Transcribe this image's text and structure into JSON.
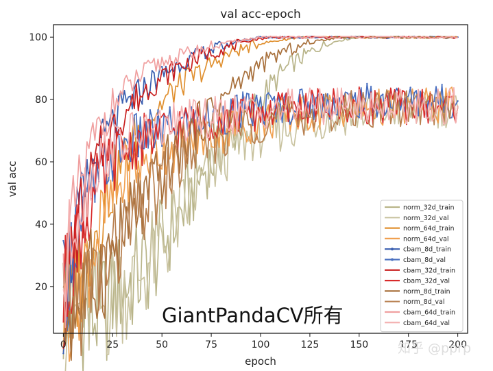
{
  "chart_data": {
    "type": "line",
    "title": "val acc-epoch",
    "xlabel": "epoch",
    "ylabel": "val acc",
    "xlim": [
      -5,
      205
    ],
    "ylim": [
      5,
      104
    ],
    "xticks": [
      0,
      25,
      50,
      75,
      100,
      125,
      150,
      175,
      200
    ],
    "yticks": [
      20,
      40,
      60,
      80,
      100
    ],
    "xtick_labels": [
      "0",
      "25",
      "50",
      "75",
      "100",
      "125",
      "150",
      "175",
      "200"
    ],
    "ytick_labels": [
      "20",
      "40",
      "60",
      "80",
      "100"
    ],
    "grid": false,
    "legend_position": "lower-right",
    "series": [
      {
        "name": "norm_32d_train",
        "color": "#b9b58a",
        "marker": false,
        "x": [
          0,
          5,
          10,
          15,
          20,
          25,
          30,
          35,
          40,
          45,
          50,
          55,
          60,
          65,
          70,
          75,
          80,
          85,
          90,
          95,
          100,
          105,
          110,
          115,
          120,
          125,
          130,
          135,
          140,
          145,
          150,
          155,
          160,
          165,
          170,
          175,
          180,
          190,
          200
        ],
        "y": [
          10,
          12,
          12,
          11,
          13,
          17,
          21,
          22,
          25,
          29,
          33,
          39,
          44,
          50,
          56,
          60,
          64,
          68,
          72,
          76,
          80,
          84,
          88,
          91,
          93,
          95,
          97,
          98,
          99,
          99.5,
          100,
          100,
          100,
          100,
          100,
          100,
          100,
          100,
          100
        ]
      },
      {
        "name": "norm_32d_val",
        "color": "#c9c3a0",
        "marker": false,
        "x": [
          0,
          5,
          10,
          15,
          20,
          25,
          30,
          35,
          40,
          45,
          50,
          55,
          60,
          65,
          70,
          75,
          80,
          85,
          90,
          95,
          100,
          105,
          110,
          115,
          120,
          125,
          130,
          135,
          140,
          145,
          150,
          160,
          170,
          180,
          190,
          200
        ],
        "y": [
          10,
          11,
          12,
          12,
          13,
          16,
          20,
          21,
          25,
          29,
          33,
          38,
          43,
          48,
          53,
          57,
          61,
          64,
          66,
          68,
          69,
          70,
          70.5,
          71,
          72,
          73,
          73.5,
          74,
          74.5,
          75,
          75.5,
          76,
          76.5,
          76.5,
          77,
          77
        ]
      },
      {
        "name": "norm_64d_train",
        "color": "#e09030",
        "marker": false,
        "x": [
          0,
          5,
          10,
          15,
          20,
          25,
          30,
          35,
          40,
          45,
          50,
          55,
          60,
          65,
          70,
          75,
          80,
          85,
          90,
          95,
          100,
          105,
          110,
          115,
          120,
          125,
          130,
          135,
          140,
          145,
          150,
          160,
          170,
          180,
          190,
          200
        ],
        "y": [
          11,
          18,
          26,
          36,
          45,
          53,
          60,
          66,
          71,
          75,
          79,
          82,
          85,
          87,
          89,
          91,
          93,
          95,
          96,
          97,
          98,
          98.5,
          99,
          99.5,
          100,
          100,
          100,
          100,
          100,
          100,
          100,
          100,
          100,
          100,
          100,
          100
        ]
      },
      {
        "name": "norm_64d_val",
        "color": "#f0a050",
        "marker": false,
        "x": [
          0,
          5,
          10,
          15,
          20,
          25,
          30,
          35,
          40,
          45,
          50,
          55,
          60,
          65,
          70,
          75,
          80,
          85,
          90,
          95,
          100,
          105,
          110,
          115,
          120,
          125,
          130,
          135,
          140,
          150,
          160,
          170,
          180,
          190,
          200
        ],
        "y": [
          11,
          17,
          24,
          33,
          41,
          48,
          53,
          57,
          60,
          62,
          64,
          65,
          66,
          67,
          68,
          69,
          70,
          71,
          72,
          72.5,
          73,
          73.5,
          74,
          74.5,
          75,
          75.5,
          76,
          76.5,
          77,
          77,
          77.5,
          77.5,
          78,
          78,
          78
        ]
      },
      {
        "name": "cbam_8d_train",
        "color": "#3a5fb0",
        "marker": true,
        "x": [
          0,
          5,
          10,
          15,
          20,
          25,
          30,
          35,
          40,
          45,
          50,
          55,
          60,
          65,
          70,
          75,
          80,
          85,
          90,
          95,
          100,
          105,
          110,
          115,
          120,
          125,
          130,
          135,
          140,
          150,
          160,
          170,
          180,
          190,
          200
        ],
        "y": [
          16,
          35,
          46,
          57,
          66,
          72,
          77,
          80,
          83,
          86,
          88,
          90,
          92,
          93,
          95,
          96,
          97,
          98,
          99,
          99.5,
          100,
          100,
          100,
          100,
          100,
          100,
          100,
          100,
          100,
          100,
          100,
          100,
          100,
          100,
          100
        ]
      },
      {
        "name": "cbam_8d_val",
        "color": "#4a70c0",
        "marker": true,
        "x": [
          0,
          5,
          10,
          15,
          20,
          25,
          30,
          35,
          40,
          45,
          50,
          55,
          60,
          65,
          70,
          75,
          80,
          85,
          90,
          95,
          100,
          105,
          110,
          115,
          120,
          125,
          130,
          135,
          140,
          150,
          160,
          170,
          180,
          190,
          200
        ],
        "y": [
          16,
          33,
          42,
          50,
          57,
          62,
          65,
          67,
          68,
          69,
          70,
          71,
          72,
          73,
          73.5,
          74,
          75,
          75.5,
          76,
          76.5,
          77,
          77.5,
          78,
          78,
          78.5,
          78.5,
          79,
          79,
          79,
          79.5,
          79.5,
          79.5,
          79.5,
          79.5,
          79.5
        ]
      },
      {
        "name": "cbam_32d_train",
        "color": "#c81e1e",
        "marker": false,
        "x": [
          0,
          5,
          10,
          15,
          20,
          25,
          30,
          35,
          40,
          45,
          50,
          55,
          60,
          65,
          70,
          75,
          80,
          85,
          90,
          95,
          100,
          105,
          110,
          115,
          120,
          125,
          130,
          135,
          140,
          150,
          160,
          170,
          180,
          190,
          200
        ],
        "y": [
          15,
          33,
          45,
          56,
          64,
          70,
          75,
          79,
          82,
          85,
          87,
          89,
          91,
          92,
          94,
          95,
          96,
          97,
          98,
          99,
          99.5,
          100,
          100,
          100,
          100,
          100,
          100,
          100,
          100,
          100,
          100,
          100,
          100,
          100,
          100
        ]
      },
      {
        "name": "cbam_32d_val",
        "color": "#d82a2a",
        "marker": false,
        "x": [
          0,
          5,
          10,
          15,
          20,
          25,
          30,
          35,
          40,
          45,
          50,
          55,
          60,
          65,
          70,
          75,
          80,
          85,
          90,
          95,
          100,
          105,
          110,
          115,
          120,
          125,
          130,
          135,
          140,
          150,
          160,
          170,
          180,
          190,
          200
        ],
        "y": [
          15,
          31,
          40,
          48,
          55,
          60,
          63,
          65,
          67,
          68,
          69,
          70,
          71,
          72,
          73,
          73.5,
          74,
          74.5,
          75,
          75.5,
          76,
          76.5,
          77,
          77,
          77.5,
          77.5,
          78,
          78,
          78,
          78,
          78,
          78,
          78,
          78,
          78
        ]
      },
      {
        "name": "norm_8d_train",
        "color": "#a8703c",
        "marker": false,
        "x": [
          0,
          5,
          10,
          15,
          20,
          25,
          30,
          35,
          40,
          45,
          50,
          55,
          60,
          65,
          70,
          75,
          80,
          85,
          90,
          95,
          100,
          105,
          110,
          115,
          120,
          125,
          130,
          135,
          140,
          150,
          160,
          170,
          180,
          190,
          200
        ],
        "y": [
          10,
          13,
          17,
          21,
          26,
          31,
          36,
          41,
          46,
          51,
          56,
          61,
          65,
          69,
          73,
          77,
          80,
          83,
          86,
          89,
          91,
          93,
          95,
          96,
          97,
          98,
          99,
          99.5,
          100,
          100,
          100,
          100,
          100,
          100,
          100
        ]
      },
      {
        "name": "norm_8d_val",
        "color": "#b88050",
        "marker": false,
        "x": [
          0,
          5,
          10,
          15,
          20,
          25,
          30,
          35,
          40,
          45,
          50,
          55,
          60,
          65,
          70,
          75,
          80,
          85,
          90,
          95,
          100,
          105,
          110,
          115,
          120,
          125,
          130,
          135,
          140,
          150,
          160,
          170,
          180,
          190,
          200
        ],
        "y": [
          10,
          13,
          17,
          21,
          25,
          30,
          35,
          40,
          45,
          49,
          53,
          57,
          60,
          63,
          65,
          67,
          68.5,
          70,
          71,
          72,
          73,
          73.5,
          74,
          74.5,
          75,
          75.5,
          76,
          76,
          76.5,
          77,
          77,
          77.5,
          77.5,
          77.5,
          77.5
        ]
      },
      {
        "name": "cbam_64d_train",
        "color": "#f0a0a0",
        "marker": false,
        "x": [
          0,
          5,
          10,
          15,
          20,
          25,
          30,
          35,
          40,
          45,
          50,
          55,
          60,
          65,
          70,
          75,
          80,
          85,
          90,
          95,
          100,
          105,
          110,
          115,
          120,
          125,
          130,
          135,
          140,
          150,
          160,
          170,
          180,
          190,
          200
        ],
        "y": [
          20,
          42,
          56,
          66,
          73,
          78,
          82,
          85,
          88,
          90,
          92,
          93,
          94,
          95,
          96,
          97,
          98,
          98.5,
          99,
          99.5,
          100,
          100,
          100,
          100,
          100,
          100,
          100,
          100,
          100,
          100,
          100,
          100,
          100,
          100,
          100
        ]
      },
      {
        "name": "cbam_64d_val",
        "color": "#f4b0b0",
        "marker": false,
        "x": [
          0,
          5,
          10,
          15,
          20,
          25,
          30,
          35,
          40,
          45,
          50,
          55,
          60,
          65,
          70,
          75,
          80,
          85,
          90,
          95,
          100,
          105,
          110,
          115,
          120,
          125,
          130,
          135,
          140,
          150,
          160,
          170,
          180,
          190,
          200
        ],
        "y": [
          20,
          40,
          50,
          57,
          62,
          65,
          67,
          68,
          69,
          70,
          71,
          72,
          72.5,
          73,
          73.5,
          74,
          74.5,
          75,
          75.5,
          76,
          76.5,
          77,
          77,
          77.5,
          77.5,
          78,
          78,
          78,
          78,
          78,
          78,
          78,
          78,
          78,
          78
        ]
      }
    ]
  },
  "watermark": {
    "main": "GiantPandaCV所有",
    "corner": "知乎 @pprp"
  }
}
